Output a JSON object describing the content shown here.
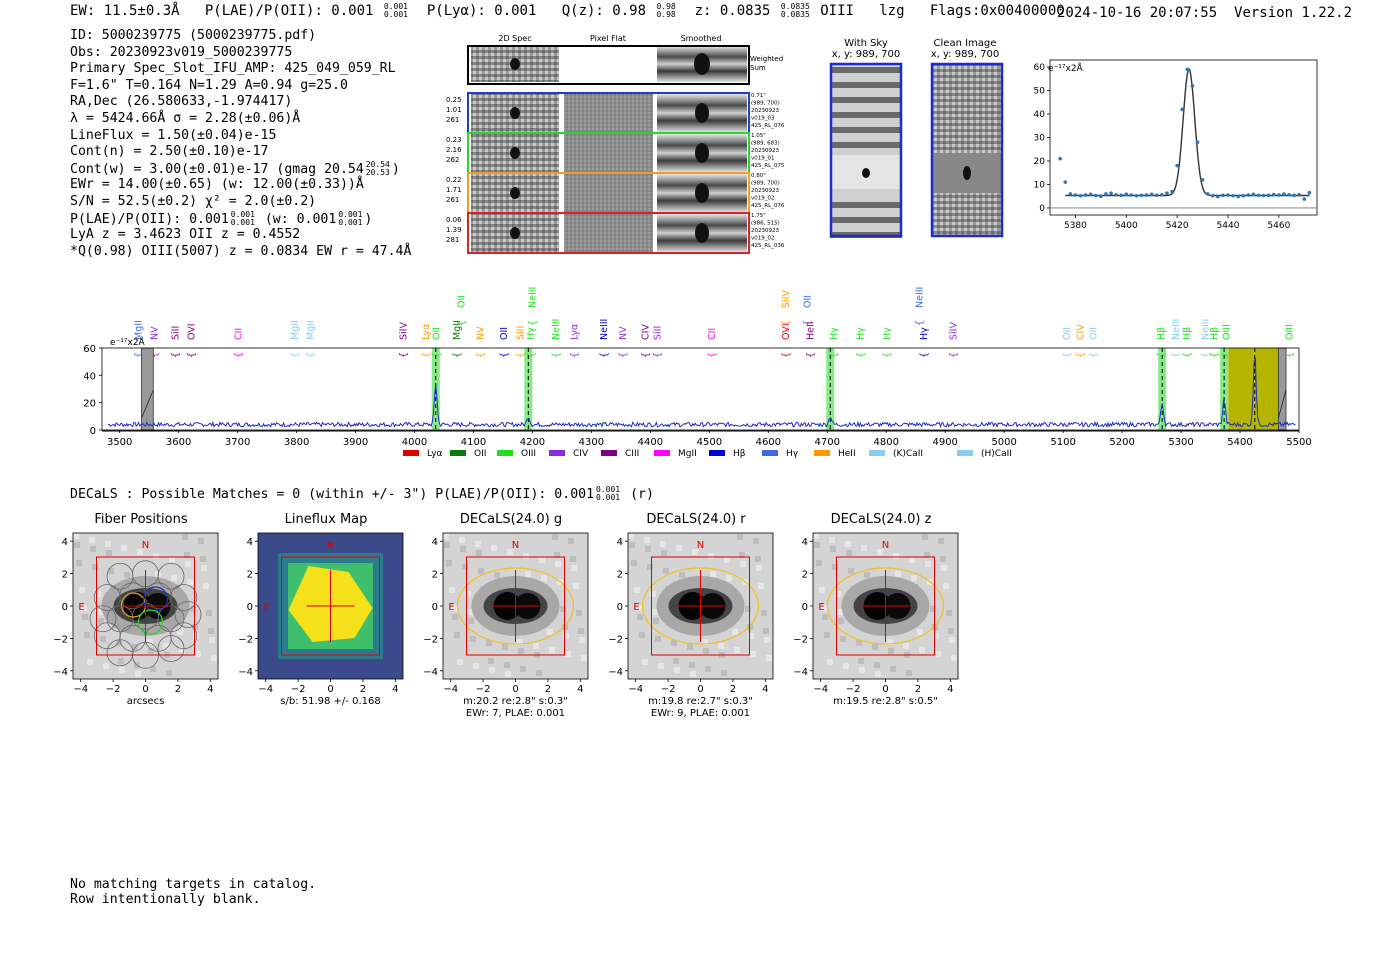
{
  "header": {
    "ew": "EW: 11.5±0.3Å",
    "plae": "P(LAE)/P(OII): 0.001",
    "plae_hi": "0.001",
    "plae_lo": "0.001",
    "plya": "P(Lyα): 0.001",
    "qz": "Q(z): 0.98",
    "qz_hi": "0.98",
    "qz_lo": "0.98",
    "z": "z: 0.0835",
    "z_hi": "0.0835",
    "z_lo": "0.0835",
    "line": "OIII",
    "lzg": "lzg",
    "flags": "Flags:0x00400000",
    "datetime": "2024-10-16 20:07:55",
    "version": "Version 1.22.2"
  },
  "info": {
    "id": "ID: 5000239775 (5000239775.pdf)",
    "obs": "Obs: 20230923v019_5000239775",
    "slot": "Primary Spec_Slot_IFU_AMP: 425_049_059_RL",
    "params": "F=1.6\"  T=0.164  N=1.29  A=0.94  g=25.0",
    "radec": "RA,Dec (26.580633,-1.974417)",
    "lambda": "λ = 5424.66Å  σ = 2.28(±0.06)Å",
    "lineflux": "LineFlux = 1.50(±0.04)e-15",
    "contn": "Cont(n) = 2.50(±0.10)e-17",
    "contw": "Cont(w) = 3.00(±0.01)e-17 (gmag 20.54",
    "contw_hi": "20.54",
    "contw_lo": "20.53",
    "contw_end": ")",
    "ewr": "EWr = 14.00(±0.65) (w: 12.00(±0.33))Å",
    "sn": "S/N = 52.5(±0.2)  χ² = 2.0(±0.2)",
    "plae": "P(LAE)/P(OII): 0.001",
    "plae_hi": "0.001",
    "plae_lo": "0.001",
    "plae_w": "(w: 0.001",
    "plae_w_hi": "0.001",
    "plae_w_lo": "0.001",
    "plae_end": ")",
    "lya": "LyA z = 3.4623  OII z = 0.4552",
    "q": "*Q(0.98) OIII(5007) z = 0.0834  EW r = 47.4Å"
  },
  "cutouts": {
    "col_titles": [
      "2D Spec",
      "Pixel Flat",
      "Smoothed"
    ],
    "weighted_label": "Weighted\nSum",
    "rows": [
      {
        "left": [
          "0.25",
          "1.01",
          "261"
        ],
        "right": [
          "0.71\"",
          "(989, 700)",
          "20230923",
          "v019_03",
          "425_RL_076"
        ],
        "color": "#1f3bd6"
      },
      {
        "left": [
          "0.23",
          "2.16",
          "262"
        ],
        "right": [
          "1.05\"",
          "(989, 683)",
          "20230923",
          "v019_01",
          "425_RL_075"
        ],
        "color": "#2bd62b"
      },
      {
        "left": [
          "0.22",
          "1.71",
          "261"
        ],
        "right": [
          "0.80\"",
          "(989, 700)",
          "20230923",
          "v019_02",
          "425_RL_076"
        ],
        "color": "#f0a020"
      },
      {
        "left": [
          "0.06",
          "1.39",
          "281"
        ],
        "right": [
          "1.75\"",
          "(986, 515)",
          "20230923",
          "v019_02",
          "425_RL_036"
        ],
        "color": "#e02020"
      }
    ]
  },
  "sky": {
    "with_sky_title": "With Sky",
    "with_sky_xy": "x, y: 989, 700",
    "clean_title": "Clean Image",
    "clean_xy": "x, y: 989, 700"
  },
  "zoom_chart": {
    "type": "scatter",
    "ylabel": "e⁻¹⁷x2Å",
    "x_ticks": [
      "5380",
      "5400",
      "5420",
      "5440",
      "5460"
    ],
    "y_ticks": [
      "0",
      "10",
      "20",
      "30",
      "40",
      "50",
      "60"
    ],
    "xlim": [
      5370,
      5475
    ],
    "ylim": [
      -3,
      63
    ]
  },
  "chart_data": [
    {
      "type": "scatter",
      "title": "",
      "ylabel": "e⁻¹⁷x2Å",
      "xlim": [
        5370,
        5475
      ],
      "ylim": [
        -3,
        63
      ],
      "x": [
        5374,
        5376,
        5378,
        5380,
        5382,
        5384,
        5386,
        5388,
        5390,
        5392,
        5394,
        5396,
        5398,
        5400,
        5402,
        5404,
        5406,
        5408,
        5410,
        5412,
        5414,
        5416,
        5418,
        5420,
        5422,
        5424,
        5426,
        5428,
        5430,
        5432,
        5434,
        5436,
        5438,
        5440,
        5442,
        5444,
        5446,
        5448,
        5450,
        5452,
        5454,
        5456,
        5458,
        5460,
        5462,
        5464,
        5466,
        5468,
        5470,
        5472
      ],
      "y": [
        21,
        11,
        6,
        5.5,
        5.2,
        5.5,
        5.8,
        5.3,
        5,
        6,
        6.3,
        5.6,
        5.4,
        5.8,
        5.5,
        5.2,
        5.4,
        5.5,
        5.8,
        5.4,
        5.6,
        6.3,
        7,
        18,
        42,
        59,
        52,
        28,
        12,
        6,
        5.2,
        4.8,
        5.4,
        5.5,
        5.2,
        4.9,
        5.2,
        5.5,
        5.8,
        5.4,
        5.3,
        5.4,
        5.7,
        5.5,
        5.9,
        5.6,
        5.4,
        5.6,
        3.8,
        6.5
      ]
    },
    {
      "type": "line",
      "title": "",
      "ylabel": "e⁻¹⁷x2Å",
      "xlim": [
        3470,
        5500
      ],
      "ylim": [
        0,
        60
      ],
      "x_ticks": [
        "3500",
        "3600",
        "3700",
        "3800",
        "3900",
        "4000",
        "4100",
        "4200",
        "4300",
        "4400",
        "4500",
        "4600",
        "4700",
        "4800",
        "4900",
        "5000",
        "5100",
        "5200",
        "5300",
        "5400",
        "5500"
      ],
      "y_ticks": [
        "0",
        "20",
        "40",
        "60"
      ],
      "peaks": [
        {
          "x": 4036,
          "y": 34
        },
        {
          "x": 4193,
          "y": 10
        },
        {
          "x": 4705,
          "y": 10
        },
        {
          "x": 5268,
          "y": 20
        },
        {
          "x": 5373,
          "y": 22
        },
        {
          "x": 5425,
          "y": 57
        }
      ],
      "highlight_bands": [
        4036,
        4193,
        4705,
        5268,
        5373
      ],
      "masked_regions": [
        [
          3537,
          3557
        ],
        [
          5465,
          5478
        ]
      ],
      "olive_region": [
        5380,
        5465
      ],
      "legend": [
        "Lyα",
        "OII",
        "OIII",
        "CIV",
        "CIII",
        "MgII",
        "Hβ",
        "Hγ",
        "HeII",
        "(K)CaII",
        "(H)CaII"
      ],
      "legend_colors": [
        "#e00000",
        "#0a7a0a",
        "#1fe01f",
        "#8a2be2",
        "#800080",
        "#ff00ff",
        "#0000cd",
        "#4169e1",
        "#ff9900",
        "#87ceeb",
        "#87ceeb"
      ]
    }
  ],
  "line_labels": [
    {
      "t": "MgII",
      "x": 3530,
      "c": "#4169e1",
      "row": 1
    },
    {
      "t": "NV",
      "x": 3557,
      "c": "#8a2be2",
      "row": 1
    },
    {
      "t": "SiII",
      "x": 3593,
      "c": "#800080",
      "row": 1
    },
    {
      "t": "OVI",
      "x": 3620,
      "c": "#800080",
      "row": 1
    },
    {
      "t": "CII",
      "x": 3700,
      "c": "#ff00ff",
      "row": 1
    },
    {
      "t": "MgII",
      "x": 3796,
      "c": "#87ceeb",
      "row": 1
    },
    {
      "t": "MgII",
      "x": 3822,
      "c": "#87ceeb",
      "row": 1
    },
    {
      "t": "SiIV",
      "x": 3980,
      "c": "#800080",
      "row": 1
    },
    {
      "t": "Lyα",
      "x": 4018,
      "c": "#ff9900",
      "row": 1
    },
    {
      "t": "OII",
      "x": 4036,
      "c": "#1fe01f",
      "row": 1
    },
    {
      "t": "OII",
      "x": 4078,
      "c": "#1fe01f",
      "row": 0
    },
    {
      "t": "MgII",
      "x": 4070,
      "c": "#0a7a0a",
      "row": 1
    },
    {
      "t": "NV",
      "x": 4110,
      "c": "#ff9900",
      "row": 1
    },
    {
      "t": "OII",
      "x": 4150,
      "c": "#0000cd",
      "row": 1
    },
    {
      "t": "SiII",
      "x": 4178,
      "c": "#ff9900",
      "row": 1
    },
    {
      "t": "Hγ",
      "x": 4196,
      "c": "#1fe01f",
      "row": 1
    },
    {
      "t": "NeIII",
      "x": 4198,
      "c": "#1fe01f",
      "row": 0
    },
    {
      "t": "NeIII",
      "x": 4238,
      "c": "#1fe01f",
      "row": 1
    },
    {
      "t": "Lyα",
      "x": 4270,
      "c": "#8a2be2",
      "row": 1
    },
    {
      "t": "NeIII",
      "x": 4320,
      "c": "#0000cd",
      "row": 1
    },
    {
      "t": "NV",
      "x": 4352,
      "c": "#8a2be2",
      "row": 1
    },
    {
      "t": "CIV",
      "x": 4390,
      "c": "#800080",
      "row": 1
    },
    {
      "t": "SiII",
      "x": 4410,
      "c": "#8a2be2",
      "row": 1
    },
    {
      "t": "CII",
      "x": 4503,
      "c": "#ff00ff",
      "row": 1
    },
    {
      "t": "SiIV",
      "x": 4628,
      "c": "#ff9900",
      "row": 0
    },
    {
      "t": "OII",
      "x": 4665,
      "c": "#4169e1",
      "row": 0
    },
    {
      "t": "OVI",
      "x": 4628,
      "c": "#e00000",
      "row": 1
    },
    {
      "t": "HeII",
      "x": 4670,
      "c": "#800080",
      "row": 1
    },
    {
      "t": "Hγ",
      "x": 4710,
      "c": "#1fe01f",
      "row": 1
    },
    {
      "t": "Hγ",
      "x": 4755,
      "c": "#1fe01f",
      "row": 1
    },
    {
      "t": "Hγ",
      "x": 4800,
      "c": "#1fe01f",
      "row": 1
    },
    {
      "t": "NeIII",
      "x": 4855,
      "c": "#4169e1",
      "row": 0
    },
    {
      "t": "Hγ",
      "x": 4862,
      "c": "#0000cd",
      "row": 1
    },
    {
      "t": "SiIV",
      "x": 4912,
      "c": "#8a2be2",
      "row": 1
    },
    {
      "t": "OII",
      "x": 5105,
      "c": "#87ceeb",
      "row": 1
    },
    {
      "t": "CIV",
      "x": 5128,
      "c": "#ff9900",
      "row": 1
    },
    {
      "t": "OII",
      "x": 5150,
      "c": "#87ceeb",
      "row": 1
    },
    {
      "t": "Hβ",
      "x": 5265,
      "c": "#1fe01f",
      "row": 1
    },
    {
      "t": "NeIII",
      "x": 5290,
      "c": "#87ceeb",
      "row": 1
    },
    {
      "t": "Hβ",
      "x": 5308,
      "c": "#1fe01f",
      "row": 1
    },
    {
      "t": "NeIII",
      "x": 5340,
      "c": "#87ceeb",
      "row": 1
    },
    {
      "t": "Hβ",
      "x": 5355,
      "c": "#1fe01f",
      "row": 1
    },
    {
      "t": "OIII",
      "x": 5375,
      "c": "#1fe01f",
      "row": 1
    },
    {
      "t": "OIII",
      "x": 5482,
      "c": "#1fe01f",
      "row": 1
    }
  ],
  "decals": {
    "summary": "DECaLS : Possible Matches = 0 (within +/- 3\")  P(LAE)/P(OII): 0.001",
    "summary_hi": "0.001",
    "summary_lo": "0.001",
    "summary_end": "(r)",
    "panels": [
      {
        "title": "Fiber Positions",
        "cap1": "arcsecs",
        "cap2": "",
        "N": "N",
        "E": "E"
      },
      {
        "title": "Lineflux Map",
        "cap1": "s/b: 51.98 +/- 0.168",
        "cap2": "",
        "N": "N",
        "E": "E"
      },
      {
        "title": "DECaLS(24.0) g",
        "cap1": "m:20.2  re:2.8\"  s:0.3\"",
        "cap2": "EWr: 7, PLAE: 0.001",
        "N": "N",
        "E": "E"
      },
      {
        "title": "DECaLS(24.0) r",
        "cap1": "m:19.8  re:2.7\"  s:0.3\"",
        "cap2": "EWr: 9, PLAE: 0.001",
        "N": "N",
        "E": "E"
      },
      {
        "title": "DECaLS(24.0) z",
        "cap1": "m:19.5  re:2.8\"  s:0.5\"",
        "cap2": "",
        "N": "N",
        "E": "E"
      }
    ],
    "ticks": [
      "−4",
      "−2",
      "0",
      "2",
      "4"
    ]
  },
  "footer": {
    "line1": "No matching targets in catalog.",
    "line2": "Row intentionally blank."
  }
}
